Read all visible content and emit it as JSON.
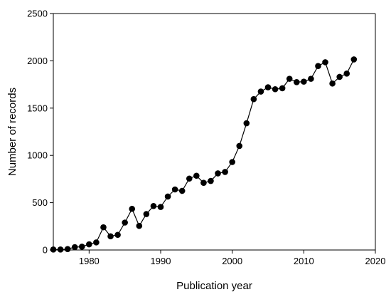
{
  "chart_data": {
    "type": "line",
    "title": "",
    "xlabel": "Publication year",
    "ylabel": "Number of records",
    "xlim": [
      1975,
      2020
    ],
    "ylim": [
      0,
      2500
    ],
    "xticks": [
      1980,
      1990,
      2000,
      2010,
      2020
    ],
    "yticks": [
      0,
      500,
      1000,
      1500,
      2000,
      2500
    ],
    "grid": false,
    "legend": "none",
    "colors": {
      "line": "#000000",
      "marker": "#000000"
    },
    "series": [
      {
        "x": [
          1975,
          1976,
          1977,
          1978,
          1979,
          1980,
          1981,
          1982,
          1983,
          1984,
          1985,
          1986,
          1987,
          1988,
          1989,
          1990,
          1991,
          1992,
          1993,
          1994,
          1995,
          1996,
          1997,
          1998,
          1999,
          2000,
          2001,
          2002,
          2003,
          2004,
          2005,
          2006,
          2007,
          2008,
          2009,
          2010,
          2011,
          2012,
          2013,
          2014,
          2015,
          2016,
          2017
        ],
        "y": [
          5,
          5,
          10,
          30,
          35,
          60,
          80,
          240,
          145,
          160,
          290,
          435,
          255,
          380,
          465,
          455,
          565,
          640,
          625,
          755,
          785,
          710,
          730,
          810,
          825,
          930,
          1100,
          1340,
          1595,
          1675,
          1720,
          1700,
          1710,
          1810,
          1775,
          1780,
          1810,
          1945,
          1985,
          1760,
          1830,
          1865,
          2015
        ]
      }
    ]
  }
}
